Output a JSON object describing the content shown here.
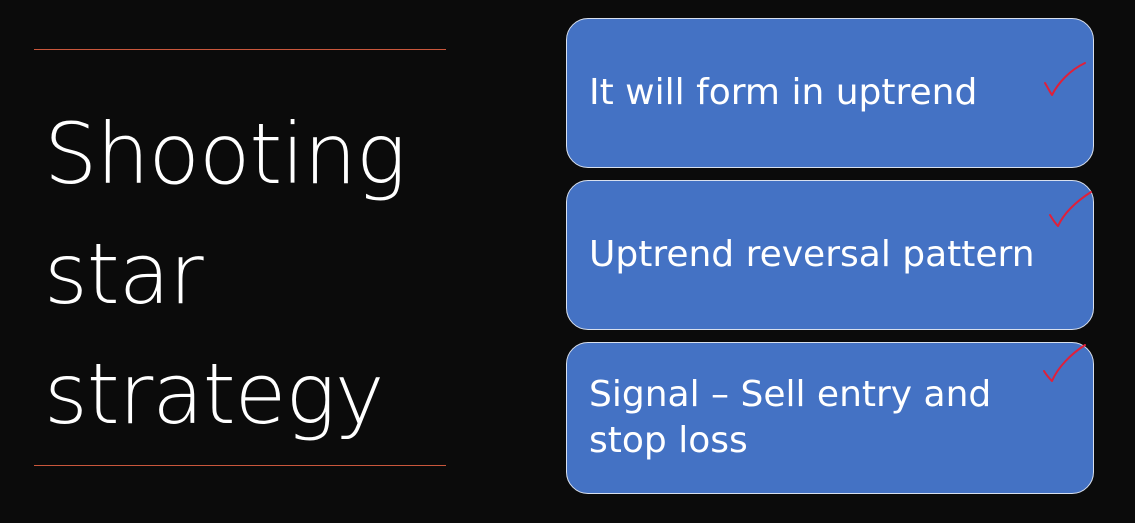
{
  "slide": {
    "title_lines": [
      "Shooting",
      "star",
      "strategy"
    ],
    "cards": [
      {
        "text": "It will form in uptrend",
        "mark": "red-checkmark-icon"
      },
      {
        "text": "Uptrend reversal pattern",
        "mark": "red-checkmark-icon"
      },
      {
        "text": "Signal – Sell entry and stop loss",
        "mark": "red-checkmark-icon"
      }
    ]
  },
  "colors": {
    "background": "#0b0b0b",
    "card_fill": "#4472c4",
    "card_border": "#d8e0ee",
    "rule": "#c9573c",
    "checkmark": "#e0203a"
  }
}
